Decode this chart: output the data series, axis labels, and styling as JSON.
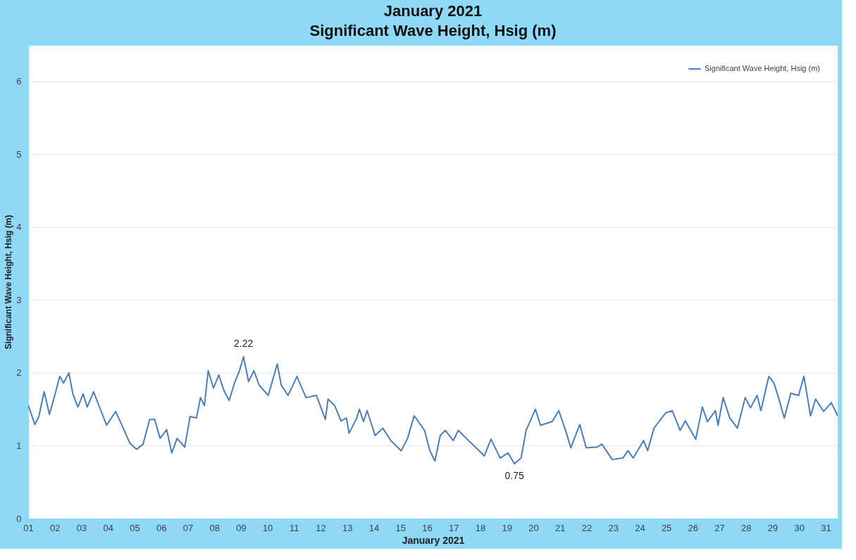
{
  "chart_data": {
    "type": "line",
    "title": "January 2021",
    "subtitle": "Significant Wave Height, Hsig (m)",
    "xlabel": "January 2021",
    "ylabel": "Significant Wave Height, Hsig (m)",
    "xlim": [
      1,
      31.45
    ],
    "xticks": [
      {
        "value": 1,
        "label": "01"
      },
      {
        "value": 2,
        "label": "02"
      },
      {
        "value": 3,
        "label": "03"
      },
      {
        "value": 4,
        "label": "04"
      },
      {
        "value": 5,
        "label": "05"
      },
      {
        "value": 6,
        "label": "06"
      },
      {
        "value": 7,
        "label": "07"
      },
      {
        "value": 8,
        "label": "08"
      },
      {
        "value": 9,
        "label": "09"
      },
      {
        "value": 10,
        "label": "10"
      },
      {
        "value": 11,
        "label": "11"
      },
      {
        "value": 12,
        "label": "12"
      },
      {
        "value": 13,
        "label": "13"
      },
      {
        "value": 14,
        "label": "14"
      },
      {
        "value": 15,
        "label": "15"
      },
      {
        "value": 16,
        "label": "16"
      },
      {
        "value": 17,
        "label": "17"
      },
      {
        "value": 18,
        "label": "18"
      },
      {
        "value": 19,
        "label": "19"
      },
      {
        "value": 20,
        "label": "20"
      },
      {
        "value": 21,
        "label": "21"
      },
      {
        "value": 22,
        "label": "22"
      },
      {
        "value": 23,
        "label": "23"
      },
      {
        "value": 24,
        "label": "24"
      },
      {
        "value": 25,
        "label": "25"
      },
      {
        "value": 26,
        "label": "26"
      },
      {
        "value": 27,
        "label": "27"
      },
      {
        "value": 28,
        "label": "28"
      },
      {
        "value": 29,
        "label": "29"
      },
      {
        "value": 30,
        "label": "30"
      },
      {
        "value": 31,
        "label": "31"
      }
    ],
    "ylim": [
      0,
      6.5
    ],
    "yticks": [
      0,
      1,
      2,
      3,
      4,
      5,
      6
    ],
    "grid": "y",
    "legend": "top right",
    "marker": "none",
    "line_style": "solid",
    "annotations": [
      {
        "text": "2.22",
        "x": 9.1,
        "y": 2.22
      },
      {
        "text": "0.75",
        "x": 19.29,
        "y": 0.75
      }
    ],
    "series": [
      {
        "name": "Significant Wave Height, Hsig (m)",
        "color": "#4a7ebb",
        "x": [
          1.01,
          1.25,
          1.4,
          1.6,
          1.8,
          2.0,
          2.19,
          2.33,
          2.53,
          2.68,
          2.87,
          3.07,
          3.22,
          3.46,
          3.66,
          3.95,
          4.29,
          4.49,
          4.83,
          5.08,
          5.32,
          5.57,
          5.76,
          5.96,
          6.21,
          6.4,
          6.6,
          6.89,
          7.09,
          7.33,
          7.48,
          7.63,
          7.77,
          7.97,
          8.17,
          8.36,
          8.56,
          8.76,
          8.95,
          9.1,
          9.29,
          9.49,
          9.69,
          10.03,
          10.37,
          10.52,
          10.77,
          10.91,
          11.11,
          11.45,
          11.84,
          12.18,
          12.28,
          12.53,
          12.77,
          12.97,
          13.07,
          13.36,
          13.46,
          13.61,
          13.75,
          14.05,
          14.34,
          14.64,
          15.03,
          15.27,
          15.52,
          15.91,
          16.11,
          16.3,
          16.5,
          16.69,
          16.99,
          17.18,
          17.48,
          17.77,
          18.16,
          18.41,
          18.75,
          19.05,
          19.29,
          19.54,
          19.73,
          20.08,
          20.27,
          20.71,
          20.96,
          21.25,
          21.41,
          21.75,
          21.99,
          22.39,
          22.58,
          22.97,
          23.37,
          23.56,
          23.76,
          24.15,
          24.3,
          24.54,
          24.98,
          25.23,
          25.52,
          25.72,
          26.11,
          26.36,
          26.55,
          26.85,
          26.95,
          27.14,
          27.39,
          27.68,
          27.97,
          28.17,
          28.42,
          28.56,
          28.86,
          29.05,
          29.2,
          29.44,
          29.69,
          29.98,
          30.18,
          30.43,
          30.62,
          30.92,
          31.21,
          31.45
        ],
        "values": [
          1.55,
          1.29,
          1.4,
          1.74,
          1.43,
          1.69,
          1.95,
          1.86,
          2.0,
          1.71,
          1.53,
          1.71,
          1.53,
          1.74,
          1.55,
          1.28,
          1.47,
          1.31,
          1.03,
          0.95,
          1.02,
          1.36,
          1.36,
          1.1,
          1.22,
          0.9,
          1.1,
          0.98,
          1.4,
          1.38,
          1.66,
          1.55,
          2.03,
          1.79,
          1.97,
          1.76,
          1.62,
          1.86,
          2.03,
          2.22,
          1.88,
          2.03,
          1.83,
          1.69,
          2.12,
          1.83,
          1.69,
          1.79,
          1.95,
          1.66,
          1.69,
          1.36,
          1.64,
          1.55,
          1.34,
          1.38,
          1.17,
          1.38,
          1.5,
          1.33,
          1.48,
          1.14,
          1.24,
          1.07,
          0.93,
          1.1,
          1.41,
          1.21,
          0.93,
          0.79,
          1.14,
          1.21,
          1.07,
          1.21,
          1.1,
          1.0,
          0.86,
          1.09,
          0.83,
          0.9,
          0.75,
          0.83,
          1.21,
          1.5,
          1.28,
          1.33,
          1.48,
          1.17,
          0.97,
          1.29,
          0.97,
          0.98,
          1.02,
          0.81,
          0.83,
          0.93,
          0.83,
          1.07,
          0.93,
          1.24,
          1.45,
          1.48,
          1.21,
          1.34,
          1.09,
          1.53,
          1.33,
          1.48,
          1.28,
          1.66,
          1.38,
          1.24,
          1.66,
          1.52,
          1.69,
          1.48,
          1.95,
          1.86,
          1.69,
          1.38,
          1.72,
          1.69,
          1.95,
          1.41,
          1.64,
          1.47,
          1.59,
          1.41
        ]
      }
    ]
  }
}
